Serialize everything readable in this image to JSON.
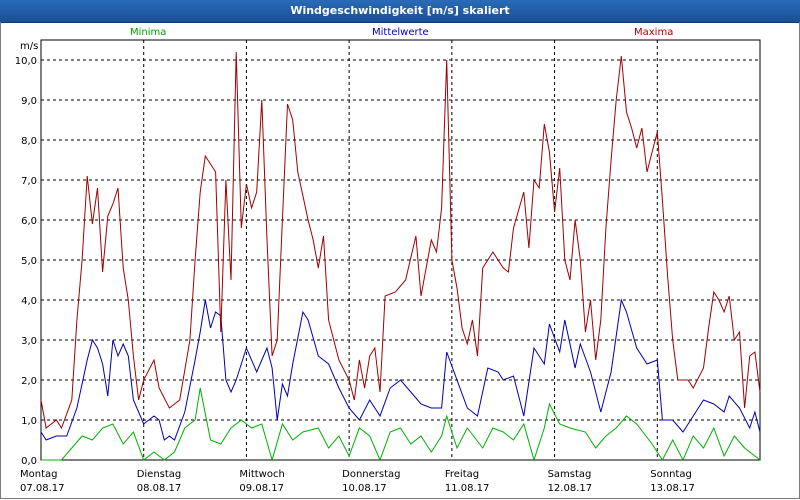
{
  "window": {
    "title": "Windgeschwindigkeit [m/s] skaliert"
  },
  "colors": {
    "min": "#00b000",
    "mean": "#0000b0",
    "max": "#a00000",
    "grid": "#000000"
  },
  "chart_data": {
    "type": "line",
    "unit": "m/s",
    "ylim": [
      0,
      10.5
    ],
    "yticks": [
      "0,0",
      "1,0",
      "2,0",
      "3,0",
      "4,0",
      "5,0",
      "6,0",
      "7,0",
      "8,0",
      "9,0",
      "10,0"
    ],
    "x_range": [
      0,
      7
    ],
    "days": [
      {
        "weekday": "Montag",
        "date": "07.08.17"
      },
      {
        "weekday": "Dienstag",
        "date": "08.08.17"
      },
      {
        "weekday": "Mittwoch",
        "date": "09.08.17"
      },
      {
        "weekday": "Donnerstag",
        "date": "10.08.17"
      },
      {
        "weekday": "Freitag",
        "date": "11.08.17"
      },
      {
        "weekday": "Samstag",
        "date": "12.08.17"
      },
      {
        "weekday": "Sonntag",
        "date": "13.08.17"
      }
    ],
    "series": [
      {
        "name": "Minima",
        "key": "min",
        "points": [
          [
            0,
            0
          ],
          [
            0.2,
            0
          ],
          [
            0.3,
            0.3
          ],
          [
            0.4,
            0.6
          ],
          [
            0.5,
            0.5
          ],
          [
            0.6,
            0.8
          ],
          [
            0.7,
            0.9
          ],
          [
            0.8,
            0.4
          ],
          [
            0.9,
            0.7
          ],
          [
            1.0,
            0
          ],
          [
            1.1,
            0.2
          ],
          [
            1.2,
            0
          ],
          [
            1.3,
            0.2
          ],
          [
            1.4,
            0.8
          ],
          [
            1.5,
            1.0
          ],
          [
            1.55,
            1.8
          ],
          [
            1.65,
            0.5
          ],
          [
            1.75,
            0.4
          ],
          [
            1.85,
            0.8
          ],
          [
            1.95,
            1.0
          ],
          [
            2.05,
            0.8
          ],
          [
            2.15,
            0.9
          ],
          [
            2.25,
            0
          ],
          [
            2.35,
            0.9
          ],
          [
            2.45,
            0.5
          ],
          [
            2.55,
            0.7
          ],
          [
            2.7,
            0.8
          ],
          [
            2.8,
            0.3
          ],
          [
            2.9,
            0.6
          ],
          [
            3.0,
            0.1
          ],
          [
            3.1,
            0.8
          ],
          [
            3.2,
            0.6
          ],
          [
            3.3,
            0
          ],
          [
            3.4,
            0.7
          ],
          [
            3.5,
            0.8
          ],
          [
            3.6,
            0.4
          ],
          [
            3.7,
            0.6
          ],
          [
            3.8,
            0.2
          ],
          [
            3.9,
            0.6
          ],
          [
            3.95,
            1.1
          ],
          [
            4.05,
            0.3
          ],
          [
            4.15,
            0.8
          ],
          [
            4.3,
            0.3
          ],
          [
            4.4,
            0.8
          ],
          [
            4.5,
            0.7
          ],
          [
            4.6,
            0.5
          ],
          [
            4.7,
            0.9
          ],
          [
            4.8,
            0
          ],
          [
            4.9,
            0.8
          ],
          [
            4.95,
            1.4
          ],
          [
            5.05,
            0.9
          ],
          [
            5.15,
            0.8
          ],
          [
            5.3,
            0.7
          ],
          [
            5.4,
            0.3
          ],
          [
            5.5,
            0.6
          ],
          [
            5.6,
            0.8
          ],
          [
            5.7,
            1.1
          ],
          [
            5.8,
            0.9
          ],
          [
            5.95,
            0.4
          ],
          [
            6.05,
            0
          ],
          [
            6.15,
            0.5
          ],
          [
            6.25,
            0
          ],
          [
            6.35,
            0.6
          ],
          [
            6.45,
            0.3
          ],
          [
            6.55,
            0.8
          ],
          [
            6.65,
            0.1
          ],
          [
            6.75,
            0.6
          ],
          [
            6.85,
            0.3
          ],
          [
            6.95,
            0.1
          ],
          [
            7.0,
            0
          ]
        ]
      },
      {
        "name": "Mittelwerte",
        "key": "mean",
        "points": [
          [
            0,
            0.7
          ],
          [
            0.05,
            0.5
          ],
          [
            0.15,
            0.6
          ],
          [
            0.25,
            0.6
          ],
          [
            0.35,
            1.3
          ],
          [
            0.45,
            2.5
          ],
          [
            0.5,
            3.0
          ],
          [
            0.55,
            2.8
          ],
          [
            0.6,
            2.4
          ],
          [
            0.65,
            1.6
          ],
          [
            0.7,
            3.0
          ],
          [
            0.75,
            2.6
          ],
          [
            0.8,
            2.9
          ],
          [
            0.85,
            2.6
          ],
          [
            0.9,
            1.5
          ],
          [
            0.95,
            1.2
          ],
          [
            1.0,
            0.9
          ],
          [
            1.1,
            1.1
          ],
          [
            1.15,
            1.0
          ],
          [
            1.2,
            0.5
          ],
          [
            1.25,
            0.6
          ],
          [
            1.3,
            0.5
          ],
          [
            1.4,
            1.2
          ],
          [
            1.5,
            2.5
          ],
          [
            1.55,
            3.2
          ],
          [
            1.6,
            4.0
          ],
          [
            1.65,
            3.3
          ],
          [
            1.7,
            3.7
          ],
          [
            1.75,
            3.6
          ],
          [
            1.8,
            2.0
          ],
          [
            1.85,
            1.7
          ],
          [
            1.9,
            2.0
          ],
          [
            2.0,
            2.8
          ],
          [
            2.1,
            2.2
          ],
          [
            2.15,
            2.5
          ],
          [
            2.2,
            2.8
          ],
          [
            2.25,
            2.3
          ],
          [
            2.3,
            1.0
          ],
          [
            2.35,
            1.9
          ],
          [
            2.4,
            1.6
          ],
          [
            2.45,
            2.4
          ],
          [
            2.55,
            3.7
          ],
          [
            2.6,
            3.5
          ],
          [
            2.7,
            2.6
          ],
          [
            2.8,
            2.4
          ],
          [
            2.9,
            1.8
          ],
          [
            3.0,
            1.3
          ],
          [
            3.1,
            1.0
          ],
          [
            3.2,
            1.5
          ],
          [
            3.3,
            1.1
          ],
          [
            3.4,
            1.8
          ],
          [
            3.5,
            2.0
          ],
          [
            3.6,
            1.7
          ],
          [
            3.7,
            1.4
          ],
          [
            3.8,
            1.3
          ],
          [
            3.9,
            1.3
          ],
          [
            3.95,
            2.7
          ],
          [
            4.05,
            2.0
          ],
          [
            4.15,
            1.3
          ],
          [
            4.25,
            1.1
          ],
          [
            4.35,
            2.3
          ],
          [
            4.45,
            2.2
          ],
          [
            4.5,
            2.0
          ],
          [
            4.6,
            2.1
          ],
          [
            4.7,
            1.1
          ],
          [
            4.8,
            2.8
          ],
          [
            4.9,
            2.4
          ],
          [
            4.95,
            3.4
          ],
          [
            5.05,
            2.7
          ],
          [
            5.1,
            3.5
          ],
          [
            5.2,
            2.3
          ],
          [
            5.25,
            2.9
          ],
          [
            5.35,
            2.2
          ],
          [
            5.45,
            1.2
          ],
          [
            5.55,
            2.2
          ],
          [
            5.65,
            4.0
          ],
          [
            5.7,
            3.7
          ],
          [
            5.8,
            2.8
          ],
          [
            5.9,
            2.4
          ],
          [
            6.0,
            2.5
          ],
          [
            6.05,
            1.0
          ],
          [
            6.15,
            1.0
          ],
          [
            6.25,
            0.7
          ],
          [
            6.35,
            1.1
          ],
          [
            6.45,
            1.5
          ],
          [
            6.55,
            1.4
          ],
          [
            6.65,
            1.2
          ],
          [
            6.7,
            1.6
          ],
          [
            6.8,
            1.3
          ],
          [
            6.9,
            0.8
          ],
          [
            6.95,
            1.2
          ],
          [
            7.0,
            0.7
          ]
        ]
      },
      {
        "name": "Maxima",
        "key": "max",
        "points": [
          [
            0,
            1.5
          ],
          [
            0.05,
            0.8
          ],
          [
            0.15,
            1.0
          ],
          [
            0.2,
            0.8
          ],
          [
            0.3,
            1.5
          ],
          [
            0.35,
            3.5
          ],
          [
            0.4,
            5.0
          ],
          [
            0.45,
            7.1
          ],
          [
            0.5,
            5.9
          ],
          [
            0.55,
            6.8
          ],
          [
            0.6,
            4.7
          ],
          [
            0.65,
            6.1
          ],
          [
            0.7,
            6.4
          ],
          [
            0.75,
            6.8
          ],
          [
            0.8,
            4.8
          ],
          [
            0.85,
            4.0
          ],
          [
            0.9,
            2.6
          ],
          [
            0.95,
            1.5
          ],
          [
            1.0,
            2.0
          ],
          [
            1.1,
            2.5
          ],
          [
            1.15,
            1.8
          ],
          [
            1.25,
            1.3
          ],
          [
            1.35,
            1.5
          ],
          [
            1.45,
            3.0
          ],
          [
            1.5,
            5.0
          ],
          [
            1.55,
            6.7
          ],
          [
            1.6,
            7.6
          ],
          [
            1.7,
            7.2
          ],
          [
            1.75,
            3.2
          ],
          [
            1.8,
            7.0
          ],
          [
            1.85,
            4.5
          ],
          [
            1.9,
            10.2
          ],
          [
            1.95,
            5.8
          ],
          [
            2.0,
            6.9
          ],
          [
            2.05,
            6.3
          ],
          [
            2.1,
            6.7
          ],
          [
            2.15,
            9.0
          ],
          [
            2.2,
            5.5
          ],
          [
            2.25,
            2.6
          ],
          [
            2.3,
            3.0
          ],
          [
            2.35,
            6.0
          ],
          [
            2.4,
            8.9
          ],
          [
            2.45,
            8.5
          ],
          [
            2.5,
            7.2
          ],
          [
            2.6,
            6.0
          ],
          [
            2.65,
            5.5
          ],
          [
            2.7,
            4.8
          ],
          [
            2.75,
            5.6
          ],
          [
            2.8,
            3.5
          ],
          [
            2.9,
            2.5
          ],
          [
            3.0,
            2.0
          ],
          [
            3.05,
            1.5
          ],
          [
            3.1,
            2.5
          ],
          [
            3.15,
            1.8
          ],
          [
            3.2,
            2.6
          ],
          [
            3.25,
            2.8
          ],
          [
            3.3,
            1.7
          ],
          [
            3.35,
            4.1
          ],
          [
            3.45,
            4.2
          ],
          [
            3.55,
            4.5
          ],
          [
            3.65,
            5.6
          ],
          [
            3.7,
            4.1
          ],
          [
            3.8,
            5.5
          ],
          [
            3.85,
            5.2
          ],
          [
            3.9,
            6.3
          ],
          [
            3.95,
            10.0
          ],
          [
            4.0,
            5.0
          ],
          [
            4.05,
            4.3
          ],
          [
            4.1,
            3.3
          ],
          [
            4.15,
            2.9
          ],
          [
            4.2,
            3.5
          ],
          [
            4.25,
            2.6
          ],
          [
            4.3,
            4.8
          ],
          [
            4.4,
            5.2
          ],
          [
            4.5,
            4.8
          ],
          [
            4.55,
            4.7
          ],
          [
            4.6,
            5.8
          ],
          [
            4.7,
            6.7
          ],
          [
            4.75,
            5.3
          ],
          [
            4.8,
            7.0
          ],
          [
            4.85,
            6.8
          ],
          [
            4.9,
            8.4
          ],
          [
            4.95,
            7.7
          ],
          [
            5.0,
            6.2
          ],
          [
            5.05,
            7.3
          ],
          [
            5.1,
            5.0
          ],
          [
            5.15,
            4.5
          ],
          [
            5.2,
            6.0
          ],
          [
            5.25,
            5.0
          ],
          [
            5.3,
            3.2
          ],
          [
            5.35,
            4.0
          ],
          [
            5.4,
            2.5
          ],
          [
            5.45,
            3.5
          ],
          [
            5.5,
            5.8
          ],
          [
            5.55,
            7.5
          ],
          [
            5.6,
            9.0
          ],
          [
            5.65,
            10.1
          ],
          [
            5.7,
            8.7
          ],
          [
            5.75,
            8.3
          ],
          [
            5.8,
            7.8
          ],
          [
            5.85,
            8.3
          ],
          [
            5.9,
            7.2
          ],
          [
            5.95,
            7.7
          ],
          [
            6.0,
            8.2
          ],
          [
            6.05,
            6.5
          ],
          [
            6.1,
            4.6
          ],
          [
            6.15,
            3.0
          ],
          [
            6.2,
            2.0
          ],
          [
            6.3,
            2.0
          ],
          [
            6.35,
            1.8
          ],
          [
            6.45,
            2.3
          ],
          [
            6.5,
            3.3
          ],
          [
            6.55,
            4.2
          ],
          [
            6.6,
            4.0
          ],
          [
            6.65,
            3.7
          ],
          [
            6.7,
            4.1
          ],
          [
            6.75,
            3.0
          ],
          [
            6.8,
            3.2
          ],
          [
            6.85,
            1.3
          ],
          [
            6.9,
            2.6
          ],
          [
            6.95,
            2.7
          ],
          [
            7.0,
            1.7
          ]
        ]
      }
    ]
  }
}
